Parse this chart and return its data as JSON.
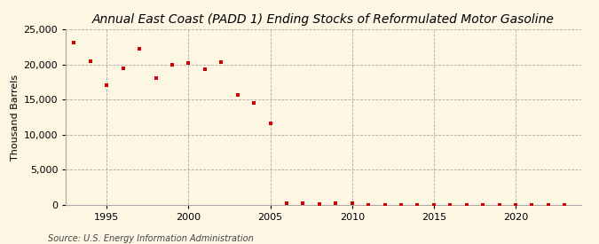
{
  "title": "Annual East Coast (PADD 1) Ending Stocks of Reformulated Motor Gasoline",
  "ylabel": "Thousand Barrels",
  "source": "Source: U.S. Energy Information Administration",
  "background_color": "#fdf6e3",
  "marker_color": "#cc0000",
  "years": [
    1993,
    1994,
    1995,
    1996,
    1997,
    1998,
    1999,
    2000,
    2001,
    2002,
    2003,
    2004,
    2005,
    2006,
    2007,
    2008,
    2009,
    2010,
    2011,
    2012,
    2013,
    2014,
    2015,
    2016,
    2017,
    2018,
    2019,
    2020,
    2021,
    2022,
    2023
  ],
  "values": [
    23100,
    20400,
    17100,
    19500,
    22200,
    18000,
    20000,
    20200,
    19300,
    20300,
    15600,
    14500,
    11600,
    250,
    300,
    150,
    200,
    200,
    50,
    50,
    50,
    50,
    50,
    50,
    50,
    50,
    50,
    50,
    50,
    50,
    50
  ],
  "ylim": [
    0,
    25000
  ],
  "yticks": [
    0,
    5000,
    10000,
    15000,
    20000,
    25000
  ],
  "xlim": [
    1992.5,
    2024
  ],
  "xticks": [
    1995,
    2000,
    2005,
    2010,
    2015,
    2020
  ],
  "grid_color": "#aaaaaa",
  "title_fontsize": 10,
  "label_fontsize": 8,
  "tick_fontsize": 8,
  "source_fontsize": 7
}
